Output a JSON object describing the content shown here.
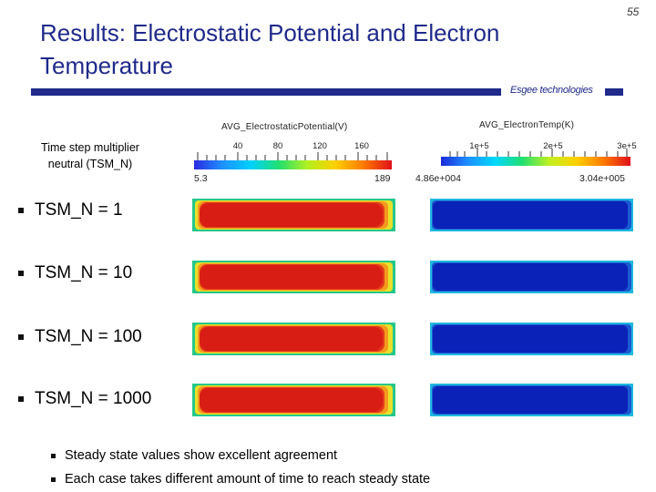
{
  "slide": {
    "title": "Results: Electrostatic Potential and Electron Temperature",
    "page_number": "55",
    "logo_text": "Esgee technologies",
    "colors": {
      "title": "#1f2a8a",
      "rule": "#1f2a8a"
    }
  },
  "caption": {
    "line1": "Time step multiplier",
    "line2": "neutral (TSM_N)"
  },
  "legend_potential": {
    "title": "AVG_ElectrostaticPotential(V)",
    "ticks": [
      "40",
      "80",
      "120",
      "160"
    ],
    "min": "5.3",
    "max": "189"
  },
  "legend_temperature": {
    "title": "AVG_ElectronTemp(K)",
    "ticks": [
      "1e+5",
      "2e+5",
      "3e+5"
    ],
    "min": "4.86e+004",
    "max": "3.04e+005"
  },
  "rows": [
    {
      "label": "TSM_N = 1"
    },
    {
      "label": "TSM_N = 10"
    },
    {
      "label": "TSM_N = 100"
    },
    {
      "label": "TSM_N = 1000"
    }
  ],
  "conclusions": [
    "Steady state values show excellent agreement",
    "Each case takes different amount of time to reach steady state"
  ]
}
